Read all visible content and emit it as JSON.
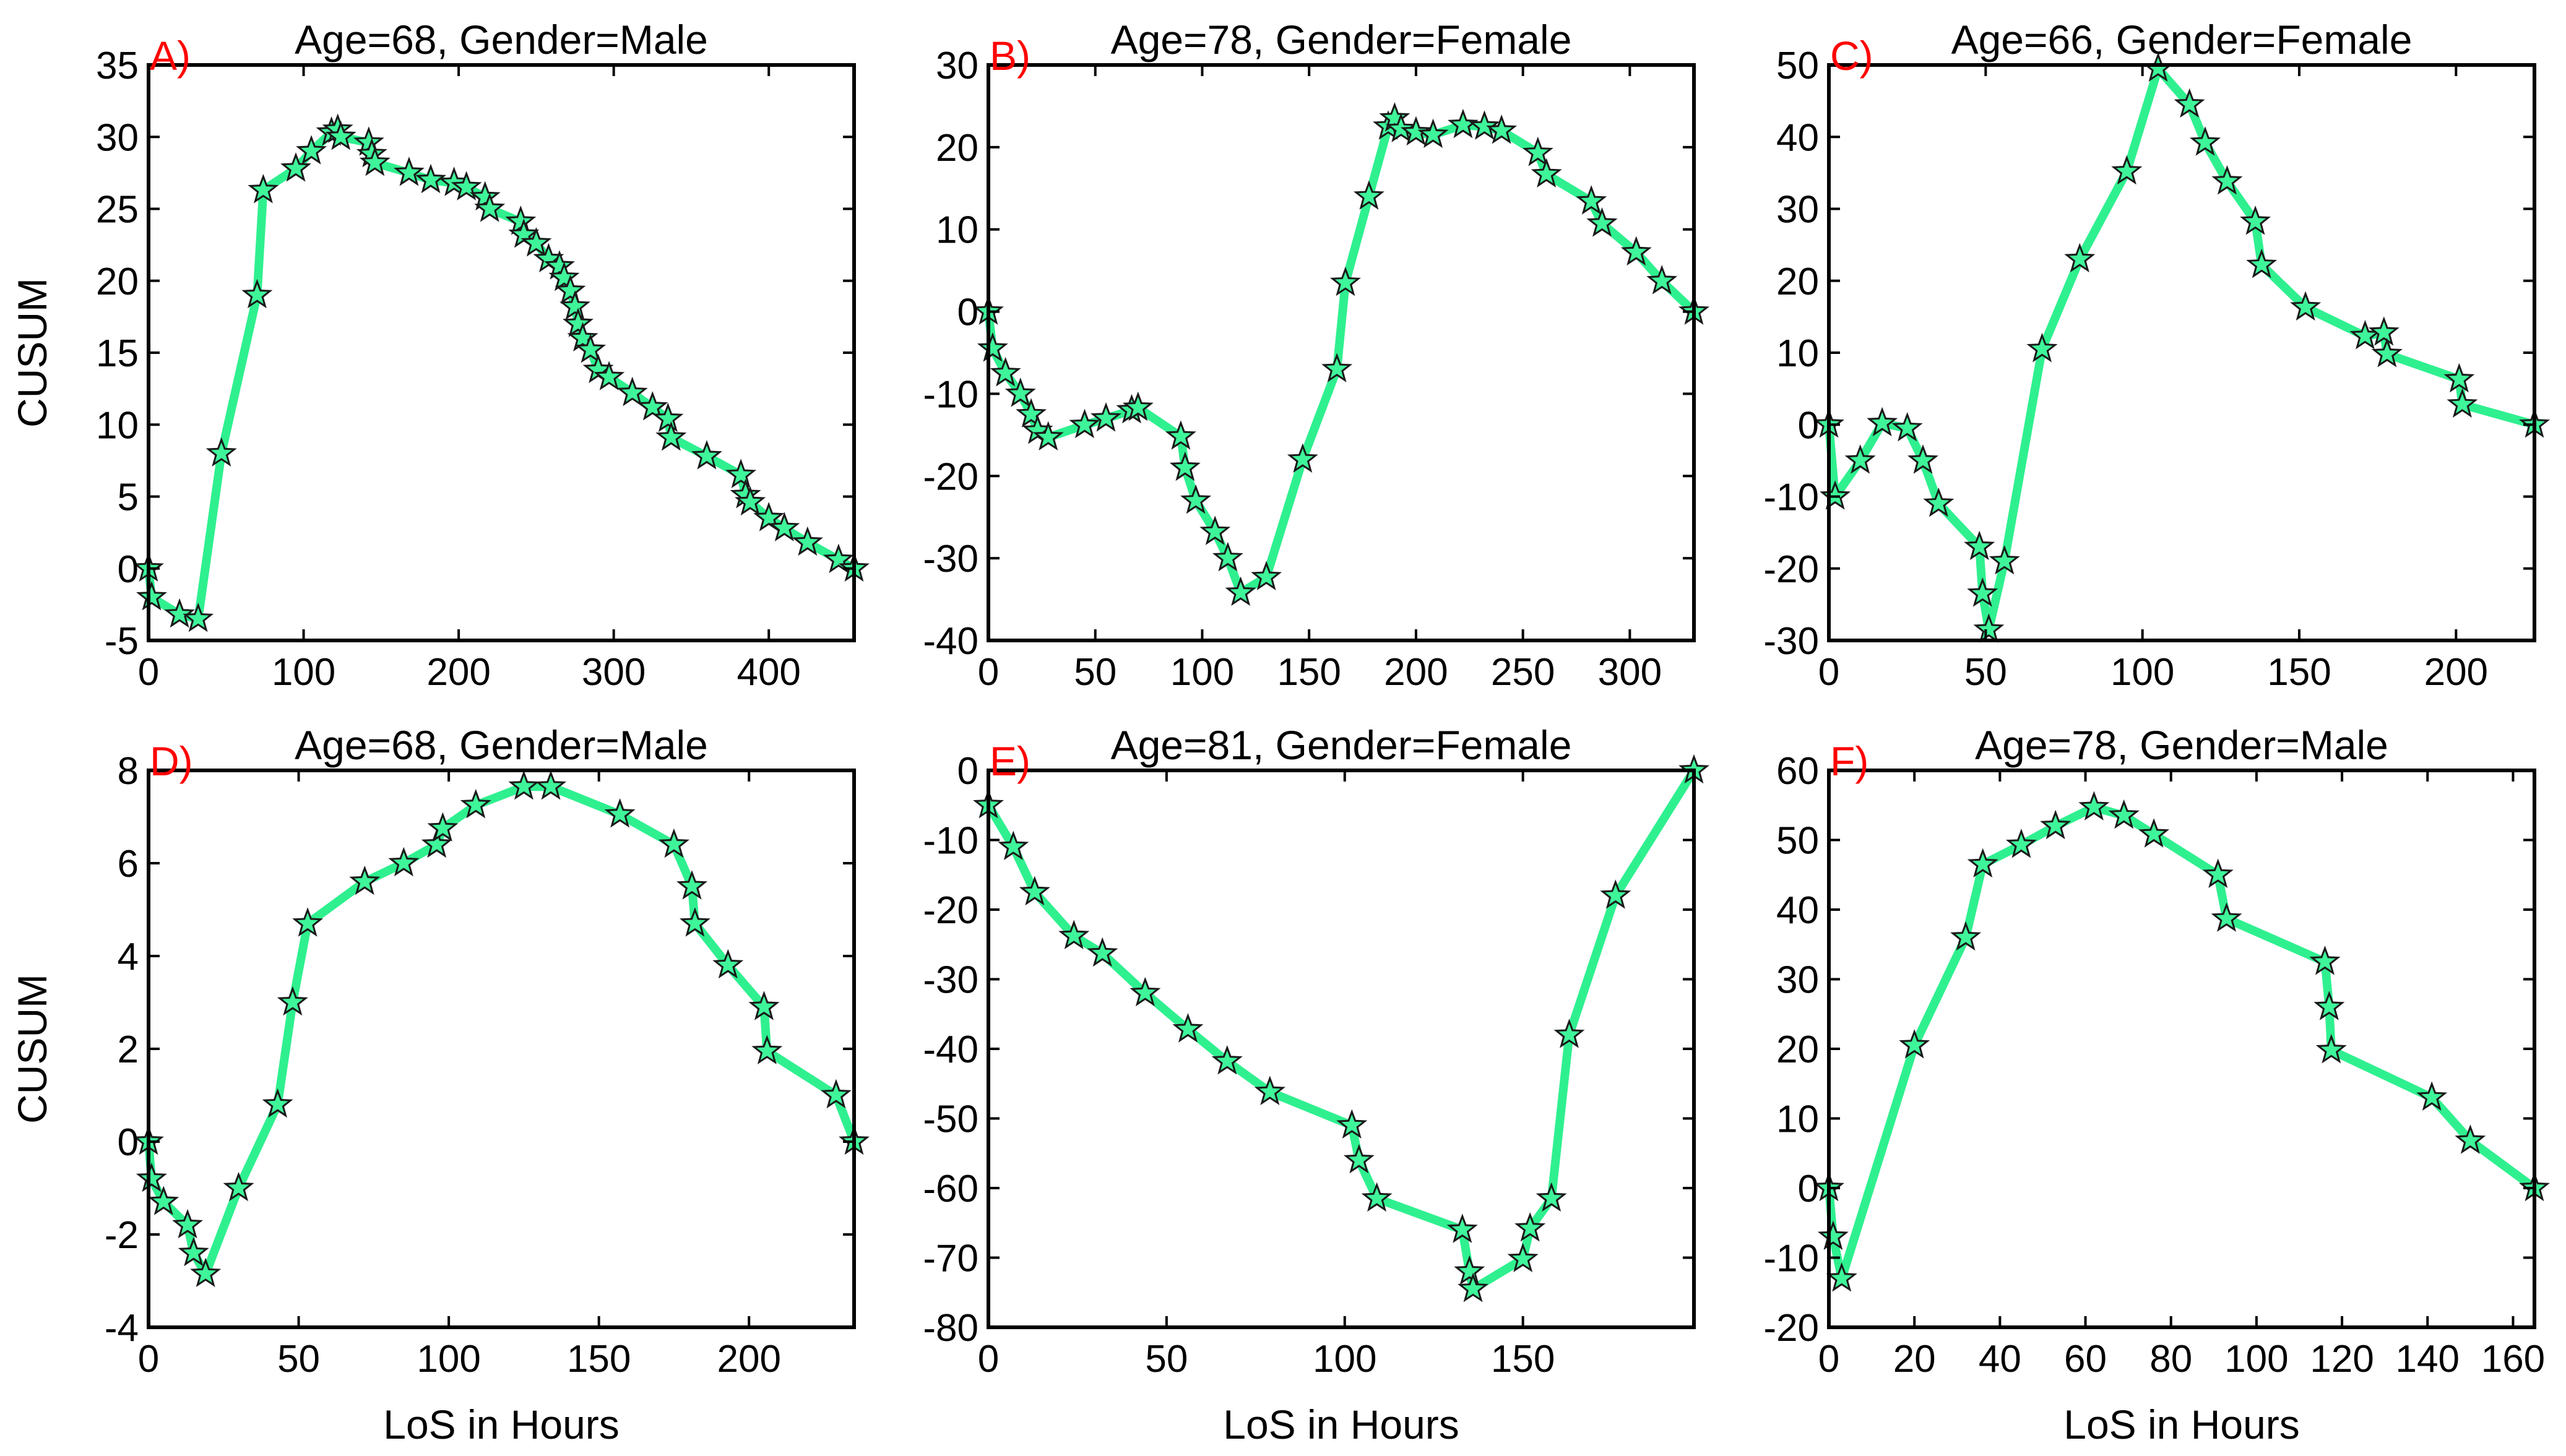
{
  "colors": {
    "line": "#2ff08f",
    "marker_fill": "#3ff59a",
    "marker_edge": "#1a1a1a",
    "letter": "#ff0000"
  },
  "chart_data": [
    {
      "type": "line",
      "letter": "A)",
      "title": "Age=68, Gender=Male",
      "xlabel": "",
      "ylabel": "CUSUM",
      "xlim": [
        0,
        455
      ],
      "ylim": [
        -5,
        35
      ],
      "xticks": [
        0,
        100,
        200,
        300,
        400
      ],
      "yticks": [
        -5,
        0,
        5,
        10,
        15,
        20,
        25,
        30,
        35
      ],
      "grid": false,
      "series": [
        {
          "x": [
            0,
            2,
            20,
            32,
            47,
            70,
            74,
            95,
            105,
            118,
            122,
            124,
            142,
            144,
            146,
            168,
            182,
            197,
            205,
            217,
            220,
            240,
            242,
            250,
            258,
            265,
            268,
            272,
            275,
            277,
            280,
            285,
            290,
            297,
            312,
            325,
            335,
            337,
            360,
            382,
            385,
            388,
            400,
            410,
            425,
            445,
            455
          ],
          "y": [
            0,
            -2,
            -3.2,
            -3.5,
            8,
            19,
            26.3,
            27.8,
            29,
            30.3,
            30.5,
            30,
            29.6,
            28.8,
            28.2,
            27.5,
            27,
            26.8,
            26.5,
            25.8,
            25,
            24.1,
            23.2,
            22.6,
            21.5,
            21,
            20.2,
            19.3,
            18.2,
            17,
            16,
            15.2,
            13.8,
            13.3,
            12.2,
            11.2,
            10.4,
            9.1,
            7.8,
            6.5,
            5.1,
            4.6,
            3.5,
            2.8,
            1.8,
            0.6,
            0
          ]
        }
      ]
    },
    {
      "type": "line",
      "letter": "B)",
      "title": "Age=78, Gender=Female",
      "xlabel": "",
      "ylabel": "",
      "xlim": [
        0,
        330
      ],
      "ylim": [
        -40,
        30
      ],
      "xticks": [
        0,
        50,
        100,
        150,
        200,
        250,
        300
      ],
      "yticks": [
        -40,
        -30,
        -20,
        -10,
        0,
        10,
        20,
        30
      ],
      "grid": false,
      "series": [
        {
          "x": [
            0,
            2,
            8,
            15,
            20,
            23,
            28,
            45,
            55,
            67,
            70,
            90,
            92,
            97,
            106,
            112,
            118,
            130,
            147,
            163,
            167,
            178,
            187,
            190,
            193,
            200,
            208,
            222,
            232,
            240,
            257,
            261,
            282,
            287,
            303,
            315,
            330
          ],
          "y": [
            0,
            -4.5,
            -7.5,
            -10,
            -12.5,
            -14.5,
            -15.3,
            -13.8,
            -13,
            -12,
            -11.7,
            -15.2,
            -19,
            -23,
            -26.8,
            -30,
            -34.2,
            -32.3,
            -18,
            -7,
            3.5,
            14,
            22.5,
            23.5,
            22.2,
            21.8,
            21.5,
            22.7,
            22.5,
            22,
            19.3,
            16.7,
            13.4,
            10.7,
            7.2,
            3.7,
            0
          ]
        }
      ]
    },
    {
      "type": "line",
      "letter": "C)",
      "title": "Age=66, Gender=Female",
      "xlabel": "",
      "ylabel": "",
      "xlim": [
        0,
        225
      ],
      "ylim": [
        -30,
        50
      ],
      "xticks": [
        0,
        50,
        100,
        150,
        200
      ],
      "yticks": [
        -30,
        -20,
        -10,
        0,
        10,
        20,
        30,
        40,
        50
      ],
      "grid": false,
      "series": [
        {
          "x": [
            0,
            2,
            10,
            17,
            25,
            30,
            35,
            48,
            49,
            51,
            56,
            68,
            80,
            95,
            105,
            115,
            120,
            127,
            136,
            138,
            152,
            171,
            177,
            178,
            201,
            202,
            225
          ],
          "y": [
            0,
            -10,
            -5,
            0.2,
            -0.5,
            -5,
            -11,
            -17,
            -23.5,
            -28.5,
            -19,
            10.5,
            23,
            35.2,
            49.5,
            44.5,
            39.2,
            33.8,
            28.2,
            22.2,
            16.3,
            12.3,
            12.8,
            9.8,
            6.3,
            2.8,
            0
          ]
        }
      ]
    },
    {
      "type": "line",
      "letter": "D)",
      "title": "Age=68, Gender=Male",
      "xlabel": "LoS in Hours",
      "ylabel": "CUSUM",
      "xlim": [
        0,
        235
      ],
      "ylim": [
        -4,
        8
      ],
      "xticks": [
        0,
        50,
        100,
        150,
        200
      ],
      "yticks": [
        -4,
        -2,
        0,
        2,
        4,
        6,
        8
      ],
      "grid": false,
      "series": [
        {
          "x": [
            0,
            1,
            5,
            13,
            15,
            19,
            30,
            43,
            48,
            53,
            72,
            85,
            96,
            98,
            109,
            125,
            134,
            157,
            175,
            181,
            182,
            193,
            205,
            206,
            229,
            235
          ],
          "y": [
            0,
            -0.8,
            -1.3,
            -1.8,
            -2.4,
            -2.85,
            -1,
            0.8,
            3,
            4.7,
            5.6,
            6,
            6.4,
            6.75,
            7.25,
            7.65,
            7.65,
            7.05,
            6.4,
            5.5,
            4.7,
            3.8,
            2.9,
            1.95,
            1,
            0
          ]
        }
      ]
    },
    {
      "type": "line",
      "letter": "E)",
      "title": "Age=81, Gender=Female",
      "xlabel": "LoS in Hours",
      "ylabel": "",
      "xlim": [
        0,
        198
      ],
      "ylim": [
        -80,
        0
      ],
      "xticks": [
        0,
        50,
        100,
        150
      ],
      "yticks": [
        -80,
        -70,
        -60,
        -50,
        -40,
        -30,
        -20,
        -10,
        0
      ],
      "grid": false,
      "series": [
        {
          "x": [
            0,
            7,
            13,
            24,
            32,
            44,
            56,
            67,
            79,
            102,
            104,
            109,
            133,
            135,
            136,
            150,
            152,
            158,
            163,
            176,
            198
          ],
          "y": [
            -5,
            -11,
            -17.5,
            -23.8,
            -26.3,
            -32,
            -37.2,
            -41.8,
            -46.2,
            -51,
            -56,
            -61.5,
            -66,
            -72,
            -74.5,
            -70.2,
            -65.8,
            -61.5,
            -38,
            -18,
            0
          ]
        }
      ]
    },
    {
      "type": "line",
      "letter": "F)",
      "title": "Age=78, Gender=Male",
      "xlabel": "LoS in Hours",
      "ylabel": "",
      "xlim": [
        0,
        165
      ],
      "ylim": [
        -20,
        60
      ],
      "xticks": [
        0,
        20,
        40,
        60,
        80,
        100,
        120,
        140,
        160
      ],
      "yticks": [
        -20,
        -10,
        0,
        10,
        20,
        30,
        40,
        50,
        60
      ],
      "grid": false,
      "series": [
        {
          "x": [
            0,
            1,
            3,
            20,
            32,
            36,
            45,
            53,
            62,
            69,
            76,
            91,
            93,
            116,
            117,
            117.5,
            141,
            150,
            165
          ],
          "y": [
            0,
            -7,
            -13,
            20.5,
            36,
            46.5,
            49.3,
            52,
            54.7,
            53.5,
            50.8,
            45,
            38.7,
            32.5,
            26,
            19.8,
            13,
            6.8,
            0
          ]
        }
      ]
    }
  ]
}
